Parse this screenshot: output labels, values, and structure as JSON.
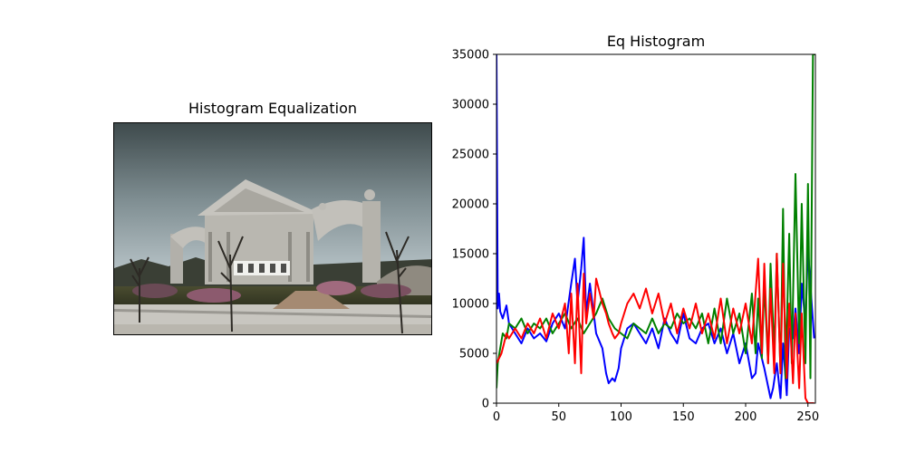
{
  "left_panel": {
    "title": "Histogram Equalization"
  },
  "chart_data": {
    "type": "line",
    "title": "Eq Histogram",
    "xlabel": "",
    "ylabel": "",
    "xlim": [
      0,
      256
    ],
    "ylim": [
      0,
      35000
    ],
    "xticks": [
      0,
      50,
      100,
      150,
      200,
      250
    ],
    "yticks": [
      0,
      5000,
      10000,
      15000,
      20000,
      25000,
      30000,
      35000
    ],
    "grid": false,
    "legend": "none",
    "series": [
      {
        "color": "#0000ff",
        "x": [
          0,
          1,
          2,
          3,
          5,
          8,
          10,
          15,
          20,
          25,
          30,
          35,
          40,
          45,
          50,
          55,
          60,
          63,
          65,
          68,
          70,
          72,
          75,
          78,
          80,
          85,
          88,
          90,
          93,
          95,
          98,
          100,
          105,
          110,
          115,
          120,
          125,
          130,
          135,
          140,
          145,
          150,
          155,
          160,
          165,
          170,
          175,
          180,
          185,
          190,
          195,
          200,
          205,
          208,
          210,
          215,
          220,
          222,
          225,
          228,
          230,
          233,
          235,
          238,
          240,
          243,
          245,
          248,
          250,
          253,
          255
        ],
        "y": [
          35000,
          9500,
          11000,
          9200,
          8500,
          9800,
          8000,
          7000,
          6000,
          7500,
          6500,
          7000,
          6200,
          8000,
          9000,
          7500,
          12000,
          14500,
          10000,
          13500,
          16600,
          9000,
          12000,
          9000,
          7000,
          5500,
          3000,
          2000,
          2500,
          2200,
          3500,
          5500,
          7500,
          8000,
          7000,
          6000,
          7500,
          5500,
          8500,
          7000,
          6000,
          9000,
          6500,
          6000,
          7500,
          8000,
          6000,
          7500,
          5000,
          7000,
          4000,
          6000,
          2500,
          3000,
          6000,
          3500,
          500,
          1500,
          4000,
          500,
          6000,
          800,
          7500,
          6500,
          9500,
          5000,
          12000,
          8000,
          15500,
          10000,
          6500
        ]
      },
      {
        "color": "#008000",
        "x": [
          0,
          1,
          3,
          5,
          8,
          10,
          15,
          20,
          25,
          30,
          35,
          40,
          45,
          50,
          55,
          60,
          65,
          70,
          75,
          80,
          85,
          90,
          95,
          100,
          105,
          110,
          115,
          120,
          125,
          130,
          135,
          140,
          145,
          150,
          155,
          160,
          165,
          170,
          175,
          180,
          185,
          190,
          195,
          200,
          205,
          208,
          210,
          213,
          215,
          218,
          220,
          223,
          225,
          228,
          230,
          232,
          235,
          237,
          240,
          243,
          245,
          248,
          250,
          252,
          254,
          256
        ],
        "y": [
          1500,
          4000,
          5500,
          7000,
          6500,
          8000,
          7500,
          8500,
          7000,
          8000,
          7500,
          8500,
          7000,
          8000,
          9000,
          7500,
          8500,
          7000,
          8000,
          9000,
          10500,
          8500,
          7500,
          7000,
          6500,
          8000,
          7500,
          7000,
          8500,
          7000,
          8000,
          7500,
          9000,
          8000,
          8500,
          7500,
          9000,
          6000,
          9500,
          6000,
          10500,
          7000,
          9000,
          5000,
          11000,
          5000,
          10500,
          4500,
          12000,
          4000,
          14000,
          5000,
          15000,
          3000,
          19500,
          2500,
          17000,
          4000,
          23000,
          6000,
          20000,
          4000,
          22000,
          2500,
          35000,
          35000
        ]
      },
      {
        "color": "#ff0000",
        "x": [
          0,
          2,
          4,
          6,
          8,
          10,
          15,
          20,
          25,
          30,
          35,
          40,
          45,
          50,
          55,
          58,
          60,
          63,
          65,
          68,
          70,
          72,
          75,
          78,
          80,
          85,
          88,
          90,
          93,
          95,
          98,
          100,
          105,
          110,
          115,
          120,
          125,
          130,
          135,
          140,
          145,
          150,
          155,
          160,
          165,
          170,
          175,
          180,
          185,
          190,
          195,
          200,
          205,
          210,
          213,
          215,
          218,
          220,
          223,
          225,
          228,
          230,
          233,
          235,
          238,
          240,
          243,
          245,
          248,
          250,
          255
        ],
        "y": [
          4000,
          4500,
          5000,
          6000,
          7000,
          6500,
          7500,
          6500,
          8000,
          7000,
          8500,
          6500,
          9000,
          7500,
          10000,
          5000,
          11000,
          4000,
          12000,
          3000,
          13000,
          8000,
          11000,
          8500,
          12500,
          10000,
          9000,
          8000,
          7000,
          6500,
          7000,
          8000,
          10000,
          11000,
          9500,
          11500,
          9000,
          11000,
          8000,
          10000,
          7000,
          9500,
          7500,
          10000,
          7000,
          9000,
          6500,
          10500,
          6000,
          9500,
          7000,
          10000,
          6000,
          14500,
          5000,
          14000,
          4000,
          11500,
          3000,
          15000,
          3000,
          14000,
          2500,
          10000,
          2000,
          9000,
          1500,
          9000,
          500,
          0,
          0
        ]
      }
    ]
  }
}
